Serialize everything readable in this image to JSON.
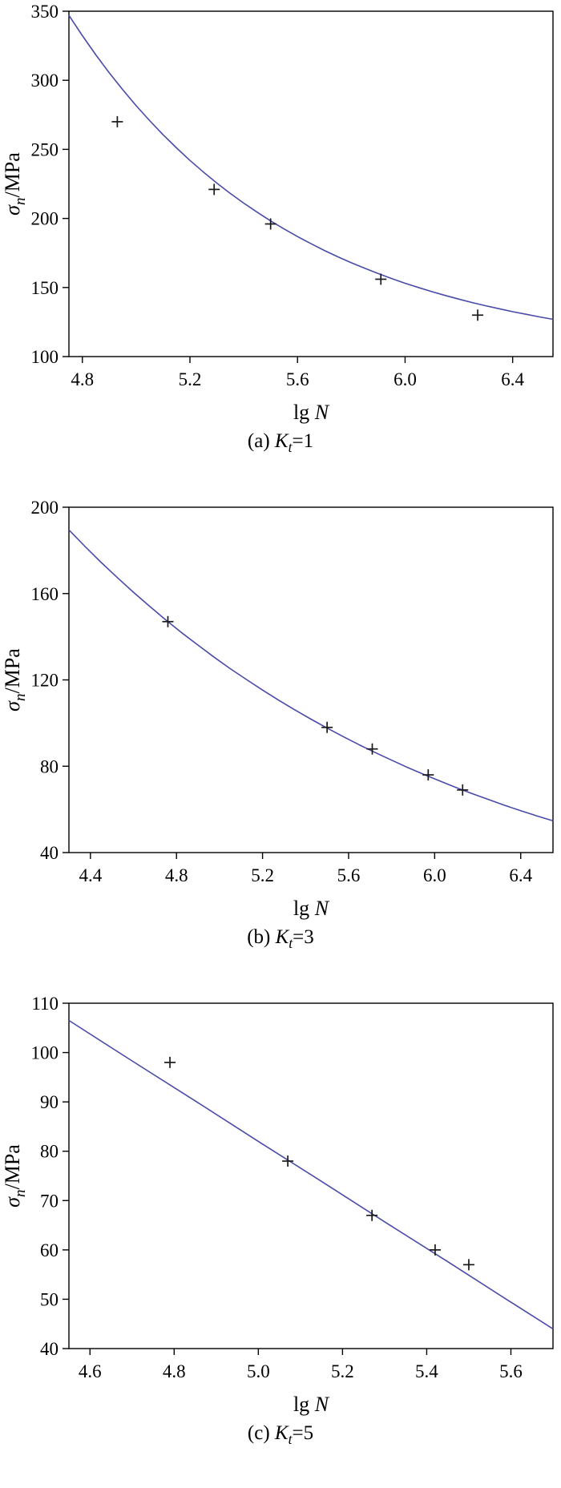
{
  "page": {
    "background": "#ffffff",
    "figure_type": "S-N fatigue curves, three stacked panels"
  },
  "chart_data": [
    {
      "id": "a",
      "type": "scatter",
      "title": "(a) Kt=1",
      "title_segments": [
        {
          "t": "(a) "
        },
        {
          "t": "K",
          "i": true
        },
        {
          "t": "t",
          "i": true,
          "sub": true
        },
        {
          "t": "=1"
        }
      ],
      "xlabel": "lg N",
      "ylabel": "σn/MPa",
      "xlabel_segments": [
        {
          "t": "lg "
        },
        {
          "t": "N",
          "i": true
        }
      ],
      "ylabel_segments": [
        {
          "t": "σ",
          "i": true
        },
        {
          "t": "n",
          "i": true,
          "sub": true
        },
        {
          "t": "/MPa"
        }
      ],
      "xlim": [
        4.75,
        6.55
      ],
      "ylim": [
        100,
        350
      ],
      "grid": false,
      "legend": false,
      "axis_color": "#000000",
      "xticks": [
        {
          "v": 4.8,
          "l": "4.8"
        },
        {
          "v": 5.2,
          "l": "5.2"
        },
        {
          "v": 5.6,
          "l": "5.6"
        },
        {
          "v": 6.0,
          "l": "6.0"
        },
        {
          "v": 6.4,
          "l": "6.4"
        }
      ],
      "yticks": [
        {
          "v": 100,
          "l": "100"
        },
        {
          "v": 150,
          "l": "150"
        },
        {
          "v": 200,
          "l": "200"
        },
        {
          "v": 250,
          "l": "250"
        },
        {
          "v": 300,
          "l": "300"
        },
        {
          "v": 350,
          "l": "350"
        }
      ],
      "series": [
        {
          "name": "fitted S-N curve",
          "kind": "line",
          "color": "#4a4aaa",
          "points": [
            [
              4.75,
              347.0
            ],
            [
              4.8,
              332.3
            ],
            [
              4.85,
              318.4
            ],
            [
              4.9,
              305.4
            ],
            [
              4.95,
              293.2
            ],
            [
              5.0,
              281.6
            ],
            [
              5.05,
              270.8
            ],
            [
              5.1,
              260.6
            ],
            [
              5.15,
              251.1
            ],
            [
              5.2,
              242.0
            ],
            [
              5.25,
              233.6
            ],
            [
              5.3,
              225.6
            ],
            [
              5.35,
              218.1
            ],
            [
              5.4,
              211.1
            ],
            [
              5.45,
              204.5
            ],
            [
              5.5,
              198.2
            ],
            [
              5.55,
              192.4
            ],
            [
              5.6,
              186.9
            ],
            [
              5.65,
              181.7
            ],
            [
              5.7,
              176.8
            ],
            [
              5.75,
              172.2
            ],
            [
              5.8,
              167.9
            ],
            [
              5.85,
              163.9
            ],
            [
              5.9,
              160.1
            ],
            [
              5.95,
              156.5
            ],
            [
              6.0,
              153.1
            ],
            [
              6.05,
              150.0
            ],
            [
              6.1,
              147.0
            ],
            [
              6.15,
              144.2
            ],
            [
              6.2,
              141.6
            ],
            [
              6.25,
              139.1
            ],
            [
              6.3,
              136.8
            ],
            [
              6.35,
              134.6
            ],
            [
              6.4,
              132.5
            ],
            [
              6.45,
              130.6
            ],
            [
              6.5,
              128.7
            ],
            [
              6.55,
              127.0
            ]
          ]
        },
        {
          "name": "experimental points",
          "kind": "scatter",
          "marker": "+",
          "color": "#1a1a1a",
          "points": [
            [
              4.93,
              270
            ],
            [
              5.29,
              221
            ],
            [
              5.5,
              196
            ],
            [
              5.91,
              156
            ],
            [
              6.27,
              130
            ]
          ]
        }
      ]
    },
    {
      "id": "b",
      "type": "scatter",
      "title": "(b) Kt=3",
      "title_segments": [
        {
          "t": "(b) "
        },
        {
          "t": "K",
          "i": true
        },
        {
          "t": "t",
          "i": true,
          "sub": true
        },
        {
          "t": "=3"
        }
      ],
      "xlabel": "lg N",
      "ylabel": "σn/MPa",
      "xlabel_segments": [
        {
          "t": "lg "
        },
        {
          "t": "N",
          "i": true
        }
      ],
      "ylabel_segments": [
        {
          "t": "σ",
          "i": true
        },
        {
          "t": "n",
          "i": true,
          "sub": true
        },
        {
          "t": "/MPa"
        }
      ],
      "xlim": [
        4.3,
        6.55
      ],
      "ylim": [
        40,
        200
      ],
      "grid": false,
      "legend": false,
      "axis_color": "#000000",
      "xticks": [
        {
          "v": 4.4,
          "l": "4.4"
        },
        {
          "v": 4.8,
          "l": "4.8"
        },
        {
          "v": 5.2,
          "l": "5.2"
        },
        {
          "v": 5.6,
          "l": "5.6"
        },
        {
          "v": 6.0,
          "l": "6.0"
        },
        {
          "v": 6.4,
          "l": "6.4"
        }
      ],
      "yticks": [
        {
          "v": 40,
          "l": "40"
        },
        {
          "v": 80,
          "l": "80"
        },
        {
          "v": 120,
          "l": "120"
        },
        {
          "v": 160,
          "l": "160"
        },
        {
          "v": 200,
          "l": "200"
        }
      ],
      "series": [
        {
          "name": "fitted S-N curve",
          "kind": "line",
          "color": "#4a4aaa",
          "points": [
            [
              4.3,
              189.5
            ],
            [
              4.375,
              181.8
            ],
            [
              4.45,
              174.4
            ],
            [
              4.525,
              167.4
            ],
            [
              4.6,
              160.6
            ],
            [
              4.675,
              154.1
            ],
            [
              4.75,
              147.8
            ],
            [
              4.825,
              141.8
            ],
            [
              4.9,
              136.1
            ],
            [
              4.975,
              130.5
            ],
            [
              5.05,
              125.2
            ],
            [
              5.125,
              120.2
            ],
            [
              5.2,
              115.3
            ],
            [
              5.275,
              110.6
            ],
            [
              5.35,
              106.1
            ],
            [
              5.425,
              101.8
            ],
            [
              5.5,
              97.7
            ],
            [
              5.575,
              93.7
            ],
            [
              5.65,
              89.9
            ],
            [
              5.725,
              86.3
            ],
            [
              5.8,
              82.8
            ],
            [
              5.875,
              79.4
            ],
            [
              5.95,
              76.2
            ],
            [
              6.025,
              73.1
            ],
            [
              6.1,
              70.1
            ],
            [
              6.175,
              67.3
            ],
            [
              6.25,
              64.6
            ],
            [
              6.325,
              61.9
            ],
            [
              6.4,
              59.4
            ],
            [
              6.475,
              57.0
            ],
            [
              6.55,
              54.7
            ]
          ]
        },
        {
          "name": "experimental points",
          "kind": "scatter",
          "marker": "+",
          "color": "#1a1a1a",
          "points": [
            [
              4.76,
              147
            ],
            [
              5.5,
              98
            ],
            [
              5.71,
              88
            ],
            [
              5.97,
              76
            ],
            [
              6.13,
              69
            ]
          ]
        }
      ]
    },
    {
      "id": "c",
      "type": "scatter",
      "title": "(c) Kt=5",
      "title_segments": [
        {
          "t": "(c) "
        },
        {
          "t": "K",
          "i": true
        },
        {
          "t": "t",
          "i": true,
          "sub": true
        },
        {
          "t": "=5"
        }
      ],
      "xlabel": "lg N",
      "ylabel": "σn/MPa",
      "xlabel_segments": [
        {
          "t": "lg "
        },
        {
          "t": "N",
          "i": true
        }
      ],
      "ylabel_segments": [
        {
          "t": "σ",
          "i": true
        },
        {
          "t": "n",
          "i": true,
          "sub": true
        },
        {
          "t": "/MPa"
        }
      ],
      "xlim": [
        4.55,
        5.7
      ],
      "ylim": [
        40,
        110
      ],
      "grid": false,
      "legend": false,
      "axis_color": "#000000",
      "xticks": [
        {
          "v": 4.6,
          "l": "4.6"
        },
        {
          "v": 4.8,
          "l": "4.8"
        },
        {
          "v": 5.0,
          "l": "5.0"
        },
        {
          "v": 5.2,
          "l": "5.2"
        },
        {
          "v": 5.4,
          "l": "5.4"
        },
        {
          "v": 5.6,
          "l": "5.6"
        }
      ],
      "yticks": [
        {
          "v": 40,
          "l": "40"
        },
        {
          "v": 50,
          "l": "50"
        },
        {
          "v": 60,
          "l": "60"
        },
        {
          "v": 70,
          "l": "70"
        },
        {
          "v": 80,
          "l": "80"
        },
        {
          "v": 90,
          "l": "90"
        },
        {
          "v": 100,
          "l": "100"
        },
        {
          "v": 110,
          "l": "110"
        }
      ],
      "series": [
        {
          "name": "fitted S-N curve",
          "kind": "line",
          "color": "#4a4aaa",
          "points": [
            [
              4.55,
              106.5
            ],
            [
              4.7,
              98.3
            ],
            [
              4.85,
              90.2
            ],
            [
              5.0,
              82.0
            ],
            [
              5.15,
              73.9
            ],
            [
              5.3,
              65.7
            ],
            [
              5.45,
              57.6
            ],
            [
              5.6,
              49.4
            ],
            [
              5.7,
              44.0
            ]
          ]
        },
        {
          "name": "experimental points",
          "kind": "scatter",
          "marker": "+",
          "color": "#1a1a1a",
          "points": [
            [
              4.79,
              98
            ],
            [
              5.07,
              78
            ],
            [
              5.27,
              67
            ],
            [
              5.42,
              60
            ],
            [
              5.5,
              57
            ]
          ]
        }
      ]
    }
  ]
}
